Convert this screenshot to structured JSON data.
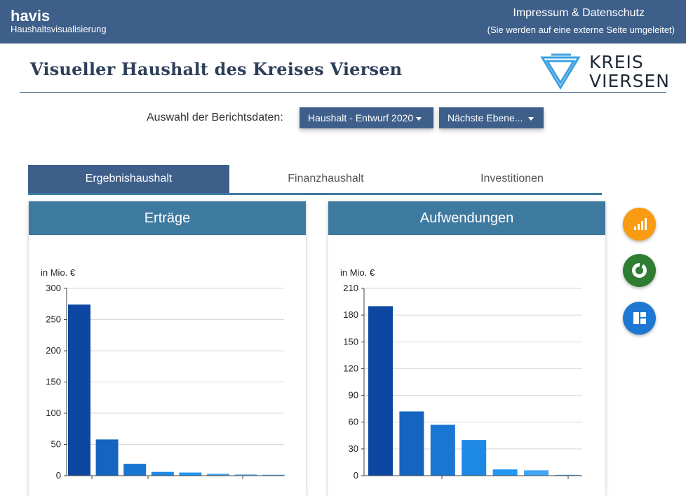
{
  "header": {
    "brand_title": "havis",
    "brand_subtitle": "Haushaltsvisualisierung",
    "impressum_link": "Impressum & Datenschutz",
    "impressum_note": "(Sie werden auf eine externe Seite umgeleitet)"
  },
  "page": {
    "title": "Visueller Haushalt des Kreises Viersen",
    "logo_line1": "KREIS",
    "logo_line2": "VIERSEN"
  },
  "selection": {
    "label": "Auswahl der Berichtsdaten:",
    "budget_dropdown": "Haushalt - Entwurf 2020",
    "level_dropdown": "Nächste Ebene..."
  },
  "tabs": [
    {
      "label": "Ergebnishaushalt",
      "active": true
    },
    {
      "label": "Finanzhaushalt",
      "active": false
    },
    {
      "label": "Investitionen",
      "active": false
    }
  ],
  "fab_icons": [
    "bar-chart-icon",
    "donut-chart-icon",
    "treemap-icon"
  ],
  "colors": {
    "header_bg": "#3e5f8a",
    "card_head_bg": "#3e7aa0",
    "fab_orange": "#f99b13",
    "fab_green": "#2e7d32",
    "fab_blue": "#1e78d2"
  },
  "chart_data": [
    {
      "type": "bar",
      "title": "Erträge",
      "ylabel": "in Mio. €",
      "ylim": [
        0,
        300
      ],
      "yticks": [
        0,
        50,
        100,
        150,
        200,
        250,
        300
      ],
      "values": [
        274,
        58,
        19,
        6,
        5,
        3,
        2,
        1.5
      ],
      "colors": [
        "#0d47a1",
        "#1565c0",
        "#1976d2",
        "#1e88e5",
        "#2196f3",
        "#42a5f5",
        "#64b5f6",
        "#64b5f6"
      ]
    },
    {
      "type": "bar",
      "title": "Aufwendungen",
      "ylabel": "in Mio. €",
      "ylim": [
        0,
        210
      ],
      "yticks": [
        0,
        30,
        60,
        90,
        120,
        150,
        180,
        210
      ],
      "values": [
        190,
        72,
        57,
        40,
        7,
        6,
        1
      ],
      "colors": [
        "#0d47a1",
        "#1565c0",
        "#1976d2",
        "#1e88e5",
        "#2196f3",
        "#42a5f5",
        "#64b5f6"
      ]
    }
  ]
}
